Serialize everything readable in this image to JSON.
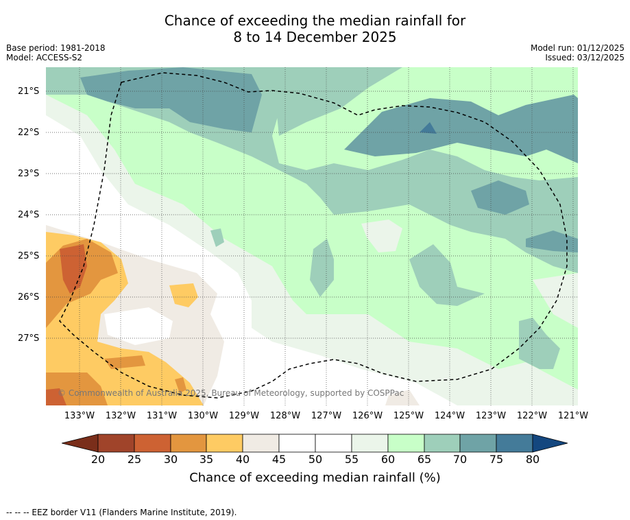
{
  "header": {
    "title_line1": "Chance of exceeding the median rainfall for",
    "title_line2": "8 to 14 December 2025",
    "base_period": "Base period: 1981-2018",
    "model": "Model: ACCESS-S2",
    "model_run": "Model run: 01/12/2025",
    "issued": "Issued: 03/12/2025"
  },
  "map": {
    "lat_labels": [
      "21°S",
      "22°S",
      "23°S",
      "24°S",
      "25°S",
      "26°S",
      "27°S"
    ],
    "lon_labels": [
      "133°W",
      "132°W",
      "131°W",
      "130°W",
      "129°W",
      "128°W",
      "127°W",
      "126°W",
      "125°W",
      "124°W",
      "123°W",
      "122°W",
      "121°W"
    ],
    "copyright": "© Commonwealth of Australia 2025, Bureau of Meteorology, supported by COSPPac",
    "colors": {
      "c20": "#a0442a",
      "c25": "#cd6233",
      "c30": "#e3963f",
      "c35": "#fecb63",
      "c40": "#f0ebe4",
      "c45": "#ffffff",
      "c50": "#ffffff",
      "c55": "#ebf5ea",
      "c60": "#c8ffc8",
      "c65": "#9ecfba",
      "c70": "#6fa3a6",
      "c75": "#447b99",
      "c80": "#14477f"
    }
  },
  "colorbar": {
    "ticks": [
      "20",
      "25",
      "30",
      "35",
      "40",
      "45",
      "50",
      "55",
      "60",
      "65",
      "70",
      "75",
      "80"
    ],
    "title": "Chance of exceeding median rainfall (%)"
  },
  "footer": {
    "legend": "--  --  -- EEZ border V11 (Flanders Marine Institute, 2019)."
  }
}
